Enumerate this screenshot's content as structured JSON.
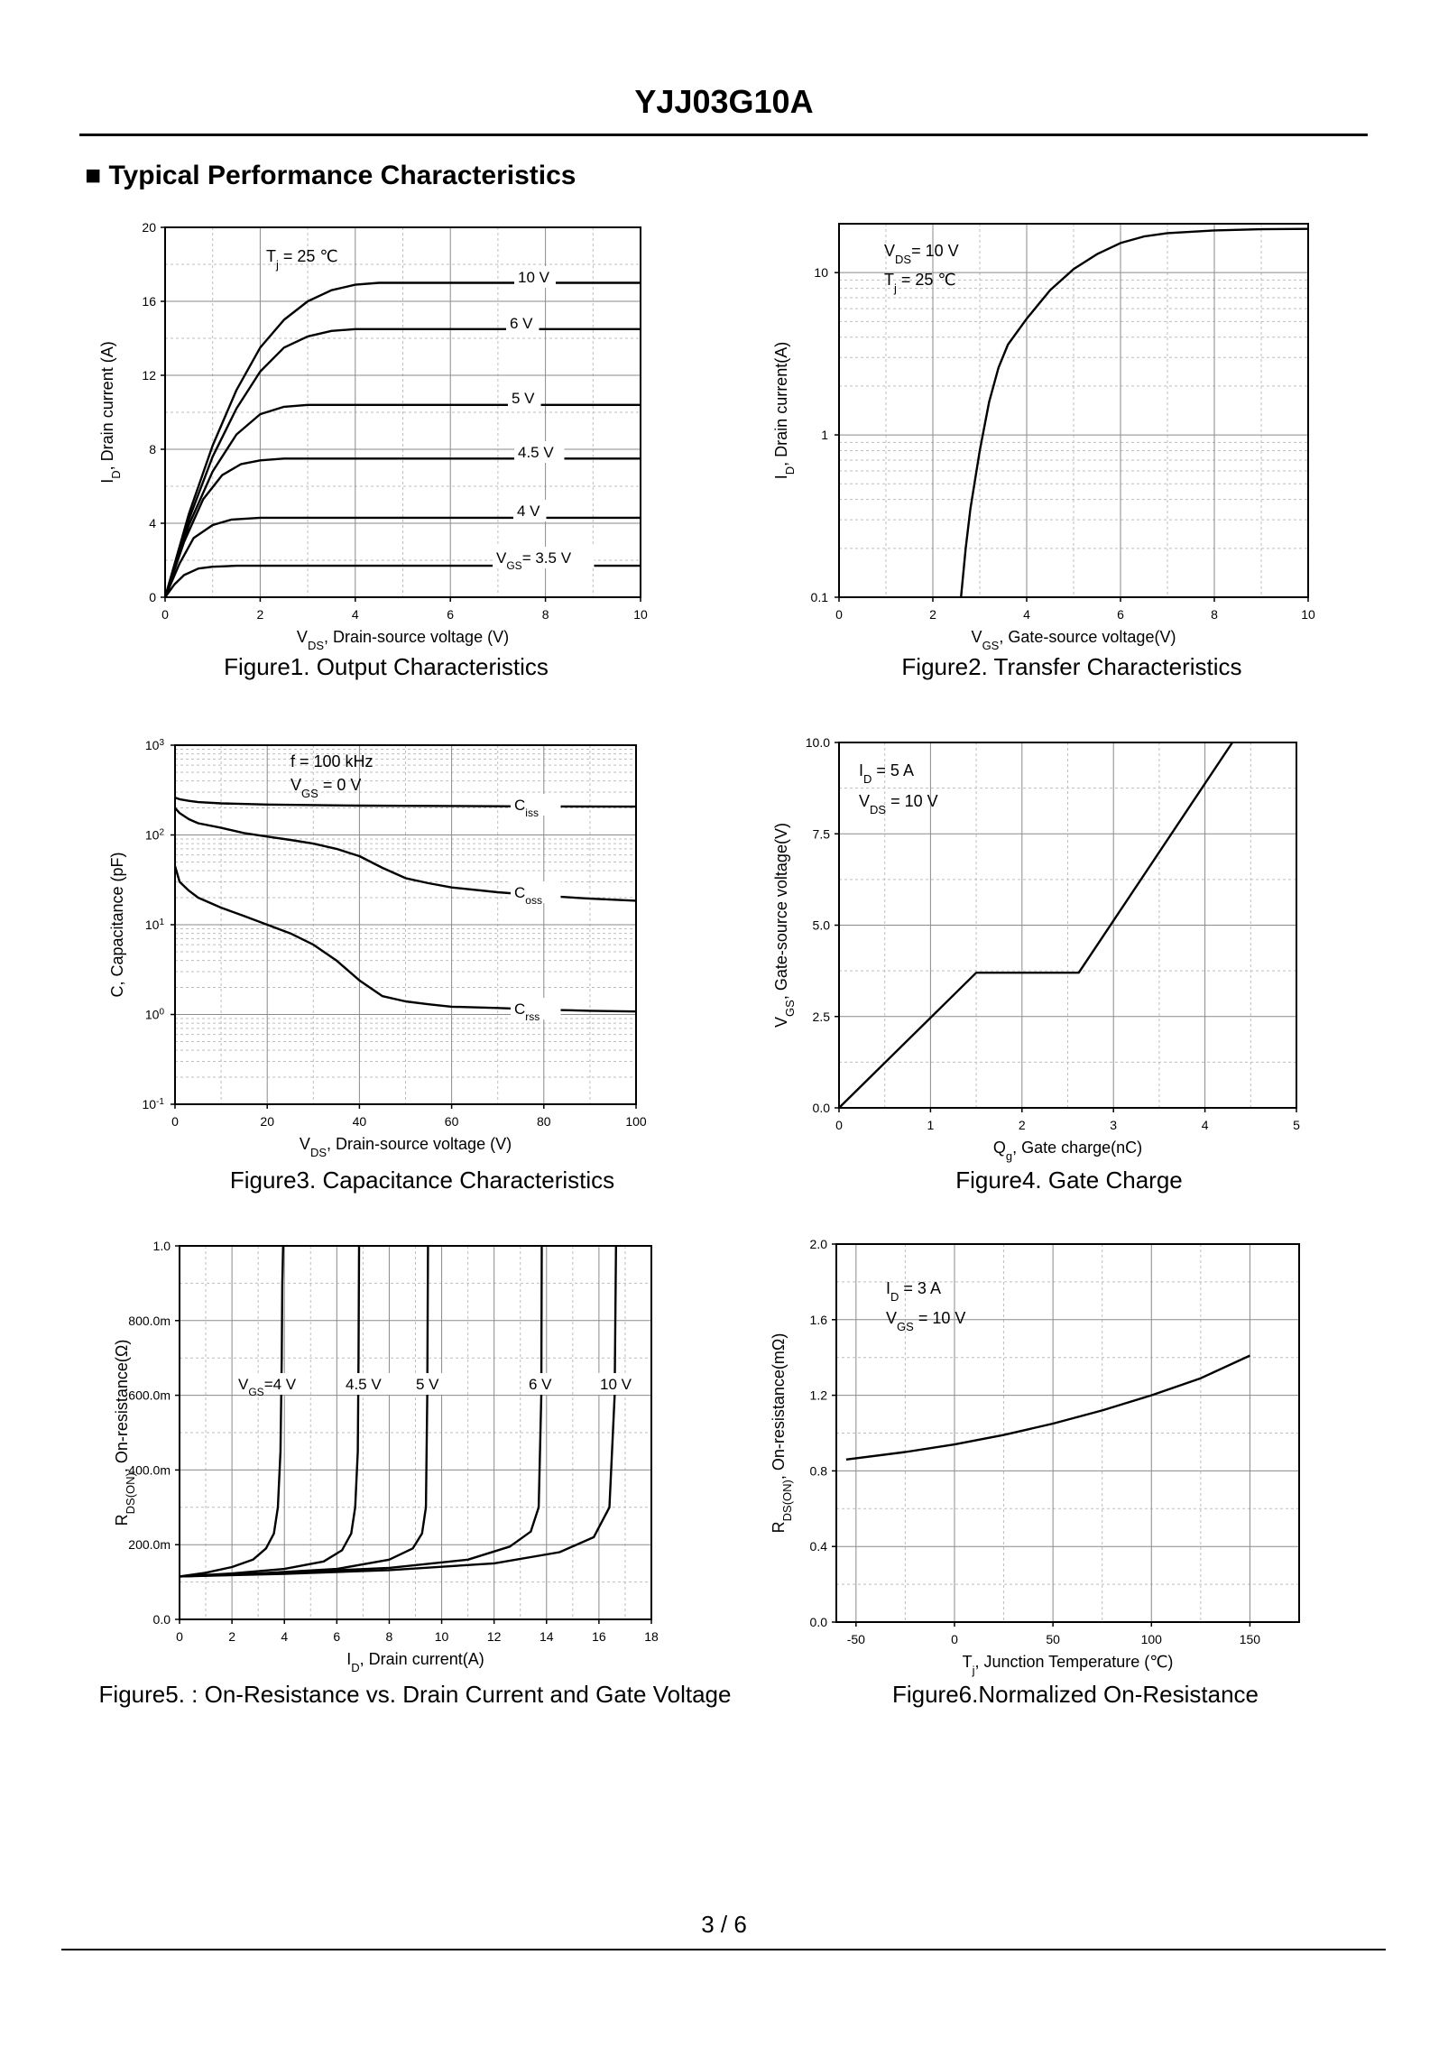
{
  "header": {
    "title": "YJJ03G10A",
    "section_heading": "■ Typical Performance Characteristics"
  },
  "footer": {
    "page_number": "3 / 6"
  },
  "chart_data": [
    {
      "id": "fig1",
      "type": "line",
      "caption": "Figure1.  Output Characteristics",
      "xlabel": "V_DS, Drain-source voltage (V)",
      "ylabel": "I_D, Drain current (A)",
      "xlim": [
        0,
        10
      ],
      "ylim": [
        0,
        20
      ],
      "xticks": [
        0,
        2,
        4,
        6,
        8,
        10
      ],
      "yticks": [
        0,
        4,
        8,
        12,
        16,
        20
      ],
      "annotations": [
        "T_j = 25 ℃"
      ],
      "series": [
        {
          "name": "10 V",
          "x": [
            0,
            0.5,
            1,
            1.5,
            2,
            2.5,
            3,
            3.5,
            4,
            4.5,
            5,
            10
          ],
          "y": [
            0,
            4.5,
            8.2,
            11.2,
            13.5,
            15.0,
            16.0,
            16.6,
            16.9,
            17.0,
            17.0,
            17.0
          ]
        },
        {
          "name": "6 V",
          "x": [
            0,
            0.5,
            1,
            1.5,
            2,
            2.5,
            3,
            3.5,
            4,
            4.5,
            10
          ],
          "y": [
            0,
            4.2,
            7.6,
            10.2,
            12.2,
            13.5,
            14.1,
            14.4,
            14.5,
            14.5,
            14.5
          ]
        },
        {
          "name": "5 V",
          "x": [
            0,
            0.5,
            1,
            1.5,
            2,
            2.5,
            3,
            10
          ],
          "y": [
            0,
            3.9,
            6.8,
            8.8,
            9.9,
            10.3,
            10.4,
            10.4
          ]
        },
        {
          "name": "4.5 V",
          "x": [
            0,
            0.4,
            0.8,
            1.2,
            1.6,
            2,
            2.5,
            10
          ],
          "y": [
            0,
            3.0,
            5.3,
            6.6,
            7.2,
            7.4,
            7.5,
            7.5
          ]
        },
        {
          "name": "4 V",
          "x": [
            0,
            0.3,
            0.6,
            1,
            1.4,
            2,
            10
          ],
          "y": [
            0,
            1.8,
            3.2,
            3.9,
            4.2,
            4.3,
            4.3
          ]
        },
        {
          "name": "V_GS= 3.5 V",
          "x": [
            0,
            0.2,
            0.4,
            0.7,
            1,
            1.5,
            10
          ],
          "y": [
            0,
            0.7,
            1.2,
            1.55,
            1.65,
            1.7,
            1.7
          ]
        }
      ]
    },
    {
      "id": "fig2",
      "type": "line",
      "yscale": "log",
      "caption": "Figure2.  Transfer Characteristics",
      "xlabel": "V_GS, Gate-source voltage(V)",
      "ylabel": "I_D, Drain current(A)",
      "xlim": [
        0,
        10
      ],
      "ylim": [
        0.1,
        20
      ],
      "xticks": [
        0,
        2,
        4,
        6,
        8,
        10
      ],
      "yticks": [
        0.1,
        1,
        10
      ],
      "annotations": [
        "V_DS= 10 V",
        "T_j = 25 ℃"
      ],
      "series": [
        {
          "name": "I_D",
          "x": [
            2.6,
            2.7,
            2.8,
            3.0,
            3.2,
            3.4,
            3.6,
            4.0,
            4.5,
            5.0,
            5.5,
            6.0,
            6.5,
            7.0,
            8.0,
            9.0,
            10.0
          ],
          "y": [
            0.1,
            0.2,
            0.35,
            0.8,
            1.6,
            2.6,
            3.6,
            5.2,
            7.8,
            10.5,
            13.0,
            15.2,
            16.7,
            17.5,
            18.2,
            18.5,
            18.6
          ]
        }
      ]
    },
    {
      "id": "fig3",
      "type": "line",
      "yscale": "log",
      "caption": "Figure3.  Capacitance Characteristics",
      "xlabel": "V_DS, Drain-source voltage (V)",
      "ylabel": "C, Capacitance (pF)",
      "xlim": [
        0,
        100
      ],
      "ylim": [
        0.1,
        1000
      ],
      "xticks": [
        0,
        20,
        40,
        60,
        80,
        100
      ],
      "yticks": [
        0.1,
        1,
        10,
        100,
        1000
      ],
      "annotations": [
        "f = 100 kHz",
        "V_GS = 0 V"
      ],
      "series": [
        {
          "name": "C_iss",
          "x": [
            0,
            1,
            3,
            5,
            10,
            20,
            40,
            60,
            80,
            100
          ],
          "y": [
            260,
            250,
            240,
            232,
            225,
            218,
            212,
            210,
            208,
            207
          ]
        },
        {
          "name": "C_oss",
          "x": [
            0,
            1,
            3,
            5,
            10,
            15,
            20,
            25,
            30,
            35,
            40,
            45,
            50,
            55,
            60,
            70,
            80,
            90,
            100
          ],
          "y": [
            200,
            175,
            150,
            135,
            120,
            105,
            96,
            88,
            80,
            70,
            58,
            43,
            33,
            29,
            26,
            23,
            21,
            19.5,
            18.5
          ]
        },
        {
          "name": "C_rss",
          "x": [
            0,
            1,
            3,
            5,
            10,
            15,
            20,
            25,
            30,
            35,
            40,
            45,
            50,
            55,
            60,
            70,
            80,
            90,
            100
          ],
          "y": [
            45,
            30,
            24,
            20,
            15.5,
            12.5,
            10,
            8,
            6,
            4,
            2.4,
            1.6,
            1.4,
            1.3,
            1.22,
            1.18,
            1.13,
            1.1,
            1.08
          ]
        }
      ],
      "series_labels": [
        "C_iss",
        "C_oss",
        "C_rss"
      ]
    },
    {
      "id": "fig4",
      "type": "line",
      "caption": "Figure4. Gate Charge",
      "xlabel": "Q_g, Gate charge(nC)",
      "ylabel": "V_GS, Gate-source voltage(V)",
      "xlim": [
        0,
        5
      ],
      "ylim": [
        0,
        10
      ],
      "xticks": [
        0,
        1,
        2,
        3,
        4,
        5
      ],
      "yticks": [
        0.0,
        2.5,
        5.0,
        7.5,
        10.0
      ],
      "ytick_labels": [
        "0.0",
        "2.5",
        "5.0",
        "7.5",
        "10.0"
      ],
      "annotations": [
        "I_D  = 5 A",
        "V_DS = 10 V"
      ],
      "series": [
        {
          "name": "V_GS",
          "x": [
            0,
            1.5,
            2.62,
            4.3
          ],
          "y": [
            0,
            3.7,
            3.7,
            10
          ]
        }
      ]
    },
    {
      "id": "fig5",
      "type": "line",
      "caption": "Figure5. : On-Resistance vs. Drain Current and Gate Voltage",
      "xlabel": "I_D, Drain current(A)",
      "ylabel": "R_DS(ON), On-resistance(Ω)",
      "xlim": [
        0,
        18
      ],
      "ylim": [
        0,
        1
      ],
      "xticks": [
        0,
        2,
        4,
        6,
        8,
        10,
        12,
        14,
        16,
        18
      ],
      "yticks": [
        0,
        0.2,
        0.4,
        0.6,
        0.8,
        1.0
      ],
      "ytick_labels": [
        "0.0",
        "200.0m",
        "400.0m",
        "600.0m",
        "800.0m",
        "1.0"
      ],
      "series": [
        {
          "name": "V_GS=4 V",
          "x": [
            0,
            1,
            2,
            2.8,
            3.3,
            3.6,
            3.75,
            3.85,
            3.9,
            3.92,
            3.95
          ],
          "y": [
            0.115,
            0.125,
            0.14,
            0.16,
            0.19,
            0.23,
            0.3,
            0.45,
            0.7,
            0.9,
            1.0
          ]
        },
        {
          "name": "4.5 V",
          "x": [
            0,
            2,
            4,
            5.5,
            6.2,
            6.55,
            6.7,
            6.8,
            6.83,
            6.85
          ],
          "y": [
            0.115,
            0.123,
            0.135,
            0.155,
            0.185,
            0.23,
            0.3,
            0.45,
            0.7,
            1.0
          ]
        },
        {
          "name": "5 V",
          "x": [
            0,
            3,
            6,
            8,
            8.9,
            9.25,
            9.4,
            9.45,
            9.48
          ],
          "y": [
            0.115,
            0.123,
            0.135,
            0.16,
            0.19,
            0.23,
            0.3,
            0.6,
            1.0
          ]
        },
        {
          "name": "6 V",
          "x": [
            0,
            4,
            8,
            11,
            12.6,
            13.4,
            13.7,
            13.8,
            13.82
          ],
          "y": [
            0.115,
            0.125,
            0.138,
            0.16,
            0.195,
            0.235,
            0.3,
            0.6,
            1.0
          ]
        },
        {
          "name": "10 V",
          "x": [
            0,
            4,
            8,
            12,
            14.5,
            15.8,
            16.4,
            16.6,
            16.65
          ],
          "y": [
            0.115,
            0.122,
            0.132,
            0.15,
            0.18,
            0.22,
            0.3,
            0.6,
            1.0
          ]
        }
      ]
    },
    {
      "id": "fig6",
      "type": "line",
      "caption": "Figure6.Normalized On-Resistance",
      "xlabel": "T_j, Junction Temperature (℃)",
      "ylabel": "R_DS(ON), On-resistance(mΩ)",
      "xlim": [
        -60,
        175
      ],
      "ylim": [
        0,
        2.0
      ],
      "xticks": [
        -50,
        0,
        50,
        100,
        150
      ],
      "yticks": [
        0.0,
        0.4,
        0.8,
        1.2,
        1.6,
        2.0
      ],
      "ytick_labels": [
        "0.0",
        "0.4",
        "0.8",
        "1.2",
        "1.6",
        "2.0"
      ],
      "annotations": [
        "I_D = 3 A",
        "V_GS = 10 V"
      ],
      "series": [
        {
          "name": "R_DS(ON)",
          "x": [
            -55,
            -25,
            0,
            25,
            50,
            75,
            100,
            125,
            150
          ],
          "y": [
            0.86,
            0.9,
            0.94,
            0.99,
            1.05,
            1.12,
            1.2,
            1.29,
            1.41
          ]
        }
      ]
    }
  ]
}
